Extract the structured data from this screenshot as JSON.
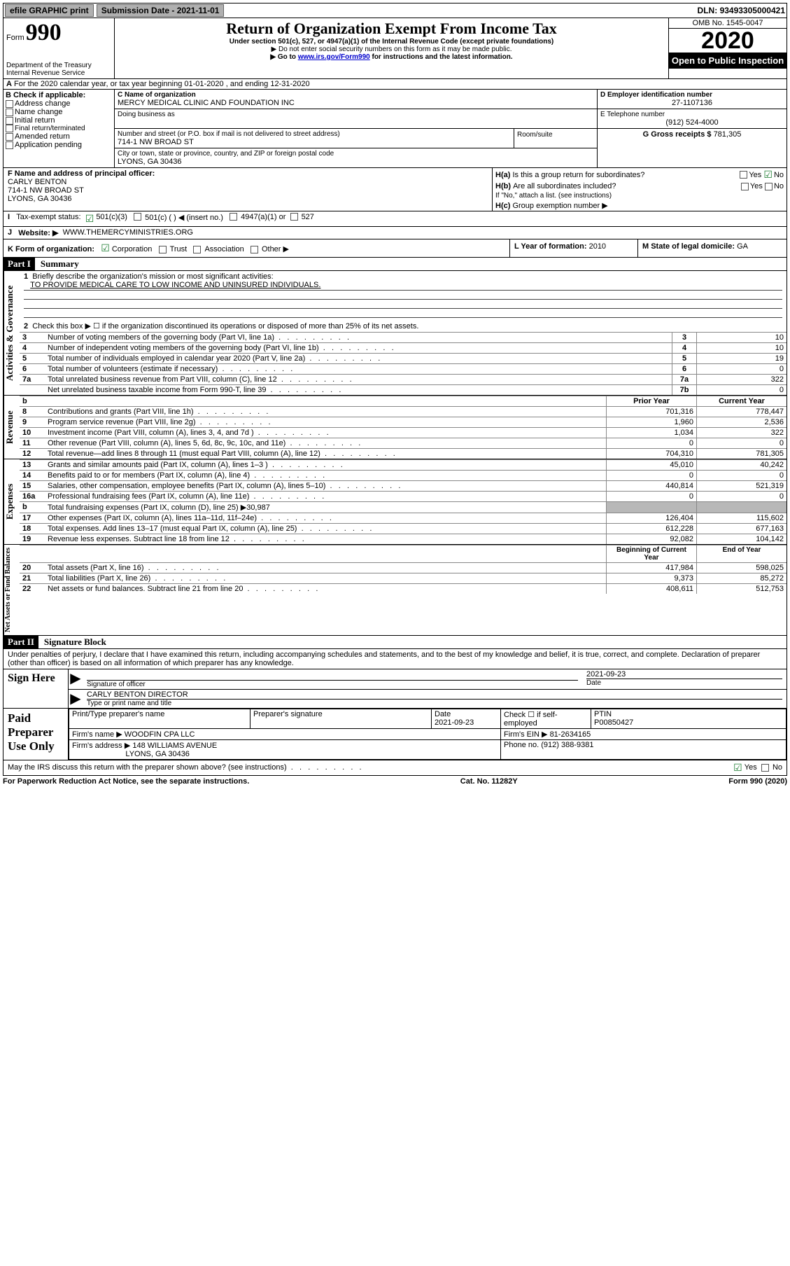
{
  "topbar": {
    "efile": "efile GRAPHIC print",
    "submission": "Submission Date - 2021-11-01",
    "dln_label": "DLN:",
    "dln": "93493305000421"
  },
  "header": {
    "form_word": "Form",
    "form_num": "990",
    "title": "Return of Organization Exempt From Income Tax",
    "subtitle": "Under section 501(c), 527, or 4947(a)(1) of the Internal Revenue Code (except private foundations)",
    "note1": "▶ Do not enter social security numbers on this form as it may be made public.",
    "note2_pre": "▶ Go to ",
    "note2_link": "www.irs.gov/Form990",
    "note2_post": " for instructions and the latest information.",
    "dept": "Department of the Treasury",
    "irs": "Internal Revenue Service",
    "omb": "OMB No. 1545-0047",
    "year": "2020",
    "open": "Open to Public Inspection"
  },
  "line_a": "For the 2020 calendar year, or tax year beginning 01-01-2020    , and ending 12-31-2020",
  "box_b": {
    "header": "B Check if applicable:",
    "items": [
      "Address change",
      "Name change",
      "Initial return",
      "Final return/terminated",
      "Amended return",
      "Application pending"
    ]
  },
  "box_c": {
    "label": "C Name of organization",
    "name": "MERCY MEDICAL CLINIC AND FOUNDATION INC",
    "dba_label": "Doing business as",
    "addr_label": "Number and street (or P.O. box if mail is not delivered to street address)",
    "room": "Room/suite",
    "addr": "714-1 NW BROAD ST",
    "city_label": "City or town, state or province, country, and ZIP or foreign postal code",
    "city": "LYONS, GA  30436"
  },
  "box_d": {
    "label": "D Employer identification number",
    "value": "27-1107136"
  },
  "box_e": {
    "label": "E Telephone number",
    "value": "(912) 524-4000"
  },
  "box_g": {
    "label": "G Gross receipts $",
    "value": "781,305"
  },
  "box_f": {
    "label": "F  Name and address of principal officer:",
    "name": "CARLY BENTON",
    "addr1": "714-1 NW BROAD ST",
    "addr2": "LYONS, GA  30436"
  },
  "box_h": {
    "a_q": "Is this a group return for subordinates?",
    "a_yes": "Yes",
    "a_no": "No",
    "b_q": "Are all subordinates included?",
    "b_note": "If \"No,\" attach a list. (see instructions)",
    "c_q": "Group exemption number ▶"
  },
  "box_i": {
    "label": "Tax-exempt status:",
    "opts": [
      "501(c)(3)",
      "501(c) (  ) ◀ (insert no.)",
      "4947(a)(1) or",
      "527"
    ]
  },
  "box_j": {
    "label": "Website: ▶",
    "value": "WWW.THEMERCYMINISTRIES.ORG"
  },
  "box_k": {
    "label": "K Form of organization:",
    "opts": [
      "Corporation",
      "Trust",
      "Association",
      "Other ▶"
    ]
  },
  "box_l": {
    "label": "L Year of formation:",
    "value": "2010"
  },
  "box_m": {
    "label": "M State of legal domicile:",
    "value": "GA"
  },
  "part1": {
    "header": "Part I",
    "title": "Summary"
  },
  "summary_q1": {
    "label": "Briefly describe the organization's mission or most significant activities:",
    "text": "TO PROVIDE MEDICAL CARE TO LOW INCOME AND UNINSURED INDIVIDUALS."
  },
  "summary_q2": "Check this box ▶ ☐  if the organization discontinued its operations or disposed of more than 25% of its net assets.",
  "gov_rows": [
    {
      "n": "3",
      "t": "Number of voting members of the governing body (Part VI, line 1a)",
      "box": "3",
      "v": "10"
    },
    {
      "n": "4",
      "t": "Number of independent voting members of the governing body (Part VI, line 1b)",
      "box": "4",
      "v": "10"
    },
    {
      "n": "5",
      "t": "Total number of individuals employed in calendar year 2020 (Part V, line 2a)",
      "box": "5",
      "v": "19"
    },
    {
      "n": "6",
      "t": "Total number of volunteers (estimate if necessary)",
      "box": "6",
      "v": "0"
    },
    {
      "n": "7a",
      "t": "Total unrelated business revenue from Part VIII, column (C), line 12",
      "box": "7a",
      "v": "322"
    },
    {
      "n": "",
      "t": "Net unrelated business taxable income from Form 990-T, line 39",
      "box": "7b",
      "v": "0"
    }
  ],
  "two_col_headers": {
    "b": "b",
    "py": "Prior Year",
    "cy": "Current Year",
    "bcy": "Beginning of Current Year",
    "ey": "End of Year"
  },
  "revenue_rows": [
    {
      "n": "8",
      "t": "Contributions and grants (Part VIII, line 1h)",
      "py": "701,316",
      "cy": "778,447"
    },
    {
      "n": "9",
      "t": "Program service revenue (Part VIII, line 2g)",
      "py": "1,960",
      "cy": "2,536"
    },
    {
      "n": "10",
      "t": "Investment income (Part VIII, column (A), lines 3, 4, and 7d )",
      "py": "1,034",
      "cy": "322"
    },
    {
      "n": "11",
      "t": "Other revenue (Part VIII, column (A), lines 5, 6d, 8c, 9c, 10c, and 11e)",
      "py": "0",
      "cy": "0"
    },
    {
      "n": "12",
      "t": "Total revenue—add lines 8 through 11 (must equal Part VIII, column (A), line 12)",
      "py": "704,310",
      "cy": "781,305"
    }
  ],
  "expense_rows": [
    {
      "n": "13",
      "t": "Grants and similar amounts paid (Part IX, column (A), lines 1–3 )",
      "py": "45,010",
      "cy": "40,242"
    },
    {
      "n": "14",
      "t": "Benefits paid to or for members (Part IX, column (A), line 4)",
      "py": "0",
      "cy": "0"
    },
    {
      "n": "15",
      "t": "Salaries, other compensation, employee benefits (Part IX, column (A), lines 5–10)",
      "py": "440,814",
      "cy": "521,319"
    },
    {
      "n": "16a",
      "t": "Professional fundraising fees (Part IX, column (A), line 11e)",
      "py": "0",
      "cy": "0"
    },
    {
      "n": "b",
      "t": "Total fundraising expenses (Part IX, column (D), line 25) ▶30,987",
      "py": "gray",
      "cy": "gray"
    },
    {
      "n": "17",
      "t": "Other expenses (Part IX, column (A), lines 11a–11d, 11f–24e)",
      "py": "126,404",
      "cy": "115,602"
    },
    {
      "n": "18",
      "t": "Total expenses. Add lines 13–17 (must equal Part IX, column (A), line 25)",
      "py": "612,228",
      "cy": "677,163"
    },
    {
      "n": "19",
      "t": "Revenue less expenses. Subtract line 18 from line 12",
      "py": "92,082",
      "cy": "104,142"
    }
  ],
  "net_rows": [
    {
      "n": "20",
      "t": "Total assets (Part X, line 16)",
      "py": "417,984",
      "cy": "598,025"
    },
    {
      "n": "21",
      "t": "Total liabilities (Part X, line 26)",
      "py": "9,373",
      "cy": "85,272"
    },
    {
      "n": "22",
      "t": "Net assets or fund balances. Subtract line 21 from line 20",
      "py": "408,611",
      "cy": "512,753"
    }
  ],
  "part2": {
    "header": "Part II",
    "title": "Signature Block"
  },
  "perjury": "Under penalties of perjury, I declare that I have examined this return, including accompanying schedules and statements, and to the best of my knowledge and belief, it is true, correct, and complete. Declaration of preparer (other than officer) is based on all information of which preparer has any knowledge.",
  "sign": {
    "here": "Sign Here",
    "sig_label": "Signature of officer",
    "date_label": "Date",
    "date": "2021-09-23",
    "name": "CARLY BENTON  DIRECTOR",
    "type_label": "Type or print name and title"
  },
  "paid": {
    "label": "Paid Preparer Use Only",
    "h1": "Print/Type preparer's name",
    "h2": "Preparer's signature",
    "h3": "Date",
    "h3v": "2021-09-23",
    "h4": "Check ☐  if self-employed",
    "h5": "PTIN",
    "h5v": "P00850427",
    "firms_name_l": "Firm's name    ▶",
    "firms_name": "WOODFIN CPA LLC",
    "firms_ein_l": "Firm's EIN ▶",
    "firms_ein": "81-2634165",
    "firms_addr_l": "Firm's address ▶",
    "firms_addr1": "148 WILLIAMS AVENUE",
    "firms_addr2": "LYONS, GA  30436",
    "phone_l": "Phone no.",
    "phone": "(912) 388-9381"
  },
  "discuss": {
    "q": "May the IRS discuss this return with the preparer shown above? (see instructions)",
    "yes": "Yes",
    "no": "No"
  },
  "footer": {
    "left": "For Paperwork Reduction Act Notice, see the separate instructions.",
    "mid": "Cat. No. 11282Y",
    "right": "Form 990 (2020)"
  },
  "labels": {
    "ag_side": "Activities & Governance",
    "rev_side": "Revenue",
    "exp_side": "Expenses",
    "net_side": "Net Assets or Fund Balances",
    "ha": "H(a)",
    "hb": "H(b)",
    "hc": "H(c)",
    "i": "I",
    "j": "J"
  },
  "colors": {
    "bg": "#ffffff",
    "black": "#000000",
    "link": "#0000cc",
    "btn_bg": "#b0b0b0",
    "check_green": "#187a2d",
    "check_blue": "#2060c0",
    "gray_cell": "#b8b8b8"
  }
}
